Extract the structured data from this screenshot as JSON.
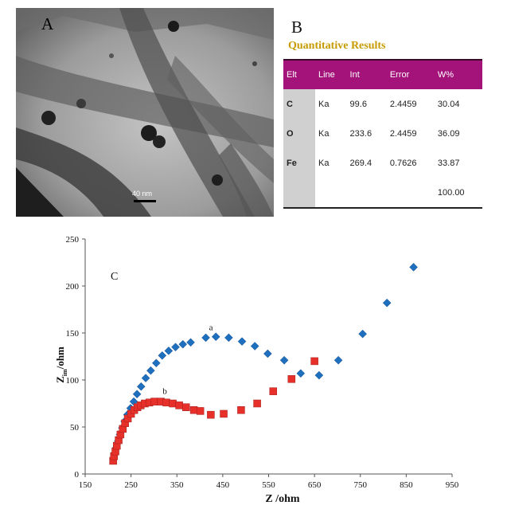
{
  "panel_a": {
    "letter": "A",
    "scale_bar": "40 nm"
  },
  "panel_b": {
    "letter": "B",
    "title": "Quantitative Results",
    "columns": [
      "Elt",
      "Line",
      "Int",
      "Error",
      "W%"
    ],
    "rows": [
      [
        "C",
        "Ka",
        "99.6",
        "2.4459",
        "30.04"
      ],
      [
        "O",
        "Ka",
        "233.6",
        "2.4459",
        "36.09"
      ],
      [
        "Fe",
        "Ka",
        "269.4",
        "0.7626",
        "33.87"
      ],
      [
        "",
        "",
        "",
        "",
        "100.00"
      ]
    ],
    "colors": {
      "header_bg": "#a4137a",
      "title": "#c79b00",
      "elt_bg": "#d0d0d0"
    }
  },
  "chart_data": {
    "type": "scatter",
    "panel_label": "C",
    "xlabel": "Z /ohm",
    "ylabel_main": "Z",
    "ylabel_sub": "im",
    "ylabel_unit": "/ohm",
    "xlim": [
      150,
      950
    ],
    "ylim": [
      0,
      250
    ],
    "xticks": [
      150,
      250,
      350,
      450,
      550,
      650,
      750,
      850,
      950
    ],
    "yticks": [
      0,
      50,
      100,
      150,
      200,
      250
    ],
    "grid": false,
    "series": [
      {
        "name": "a",
        "marker": "diamond",
        "color": "#1f6fbf",
        "points": [
          [
            212,
            16
          ],
          [
            215,
            22
          ],
          [
            218,
            28
          ],
          [
            222,
            35
          ],
          [
            226,
            42
          ],
          [
            231,
            49
          ],
          [
            236,
            56
          ],
          [
            242,
            63
          ],
          [
            249,
            70
          ],
          [
            256,
            77
          ],
          [
            263,
            85
          ],
          [
            272,
            93
          ],
          [
            282,
            102
          ],
          [
            293,
            110
          ],
          [
            305,
            118
          ],
          [
            318,
            126
          ],
          [
            332,
            131
          ],
          [
            347,
            135
          ],
          [
            363,
            138
          ],
          [
            380,
            140
          ],
          [
            413,
            145
          ],
          [
            435,
            146
          ],
          [
            463,
            145
          ],
          [
            492,
            141
          ],
          [
            520,
            136
          ],
          [
            548,
            128
          ],
          [
            584,
            121
          ],
          [
            620,
            107
          ],
          [
            660,
            105
          ],
          [
            702,
            121
          ],
          [
            755,
            149
          ],
          [
            808,
            182
          ],
          [
            866,
            220
          ]
        ]
      },
      {
        "name": "b",
        "marker": "square",
        "color": "#e8302b",
        "points": [
          [
            211,
            14
          ],
          [
            213,
            19
          ],
          [
            216,
            24
          ],
          [
            219,
            30
          ],
          [
            223,
            36
          ],
          [
            227,
            42
          ],
          [
            232,
            48
          ],
          [
            237,
            54
          ],
          [
            243,
            59
          ],
          [
            250,
            64
          ],
          [
            257,
            68
          ],
          [
            264,
            71
          ],
          [
            271,
            73
          ],
          [
            280,
            75
          ],
          [
            290,
            76
          ],
          [
            301,
            77
          ],
          [
            315,
            77
          ],
          [
            327,
            76
          ],
          [
            341,
            75
          ],
          [
            355,
            73
          ],
          [
            370,
            71
          ],
          [
            387,
            68
          ],
          [
            401,
            67
          ],
          [
            424,
            63
          ],
          [
            452,
            64
          ],
          [
            490,
            68
          ],
          [
            525,
            75
          ],
          [
            560,
            88
          ],
          [
            600,
            101
          ],
          [
            650,
            120
          ]
        ]
      }
    ],
    "annotations": [
      {
        "text": "a",
        "x": 420,
        "y": 153
      },
      {
        "text": "b",
        "x": 319,
        "y": 85
      }
    ]
  }
}
